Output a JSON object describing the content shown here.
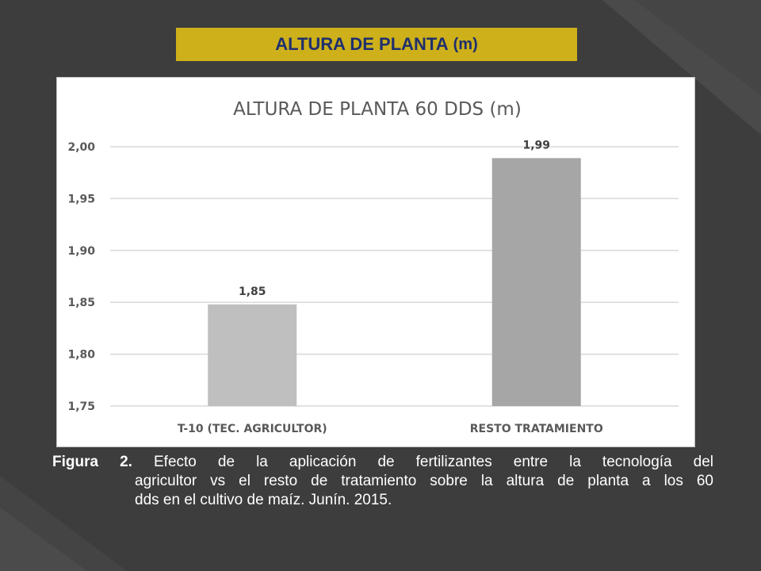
{
  "slide": {
    "title_main": "ALTURA DE PLANTA",
    "title_unit": "(m)"
  },
  "caption": {
    "label": "Figura 2.",
    "line1": "Efecto de la aplicación de fertilizantes entre la tecnología del",
    "line2": "agricultor vs el resto de tratamiento sobre la altura de planta a los 60",
    "line3": "dds en el cultivo de maíz. Junín. 2015."
  },
  "colors": {
    "background": "#3d3d3d",
    "title_band": "#cdb01a",
    "title_text": "#1f2f6e",
    "bar_1": "#bfbfbf",
    "bar_2": "#a6a6a6"
  },
  "chart_data": {
    "type": "bar",
    "title": "ALTURA DE PLANTA 60 DDS (m)",
    "categories": [
      "T-10 (TEC. AGRICULTOR)",
      "RESTO TRATAMIENTO"
    ],
    "values": [
      1.848,
      1.989
    ],
    "data_labels": [
      "1,85",
      "1,99"
    ],
    "ylim": [
      1.75,
      2.0
    ],
    "yticks": [
      1.75,
      1.8,
      1.85,
      1.9,
      1.95,
      2.0
    ],
    "ytick_labels": [
      "1,75",
      "1,80",
      "1,85",
      "1,90",
      "1,95",
      "2,00"
    ],
    "xlabel": "",
    "ylabel": "",
    "grid": true,
    "legend": "none"
  }
}
